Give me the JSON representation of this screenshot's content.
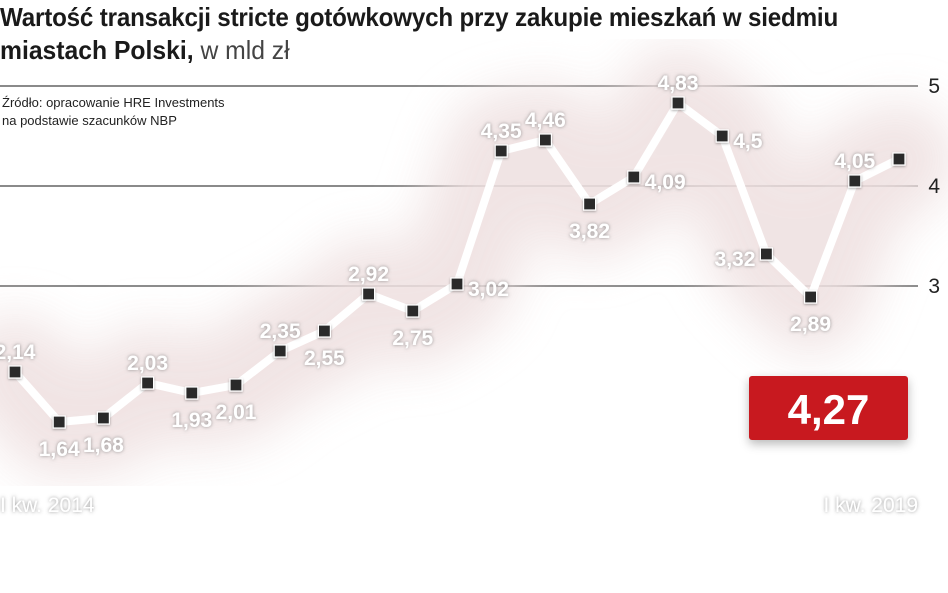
{
  "title": {
    "line1": "Wartość transakcji stricte gotówkowych przy zakupie mieszkań w siedmiu",
    "line2": "miastach Polski,",
    "unit": "w mld zł"
  },
  "source": {
    "line1": "Źródło: opracowanie HRE Investments",
    "line2": "na podstawie szacunków NBP"
  },
  "callout": {
    "value": "4,27",
    "color": "#c8191f"
  },
  "colors": {
    "line": "#ffffff",
    "halo": "#efe1e1",
    "grid": "#444444",
    "marker": "#2b2b2b",
    "label": "#ffffff",
    "axis_text": "#222222",
    "background": "#ffffff"
  },
  "chart_data": {
    "type": "line",
    "title": "Wartość transakcji stricte gotówkowych przy zakupie mieszkań w siedmiu miastach Polski, w mld zł",
    "xlabel": "",
    "ylabel": "",
    "x": [
      "I kw. 2014",
      "",
      "",
      "",
      "",
      "",
      "",
      "",
      "",
      "",
      "",
      "",
      "",
      "",
      "",
      "",
      "",
      "",
      "",
      "",
      "I kw. 2019"
    ],
    "x_tick_labels": [
      "I kw. 2014",
      "I kw. 2019"
    ],
    "ylim": [
      0,
      5.2
    ],
    "yticks": [
      3,
      4,
      5
    ],
    "ytick_labels": [
      "3",
      "4",
      "5"
    ],
    "grid": true,
    "legend": "none",
    "series": [
      {
        "values": [
          2.14,
          1.64,
          1.68,
          2.03,
          1.93,
          2.01,
          2.35,
          2.55,
          2.92,
          2.75,
          3.02,
          4.35,
          4.46,
          3.82,
          4.09,
          4.83,
          4.5,
          3.32,
          2.89,
          4.05,
          4.27
        ],
        "data_labels": [
          "2,14",
          "1,64",
          "1,68",
          "2,03",
          "1,93",
          "2,01",
          "2,35",
          "2,55",
          "2,92",
          "2,75",
          "3,02",
          "4,35",
          "4,46",
          "3,82",
          "4,09",
          "4,83",
          "4,5",
          "3,32",
          "2,89",
          "4,05",
          ""
        ],
        "label_side": [
          "top",
          "bottom",
          "bottom",
          "top",
          "bottom",
          "bottom",
          "top",
          "bottom",
          "top",
          "bottom",
          "right",
          "top",
          "top",
          "bottom",
          "right",
          "top",
          "right",
          "left",
          "bottom",
          "top",
          ""
        ]
      }
    ]
  }
}
